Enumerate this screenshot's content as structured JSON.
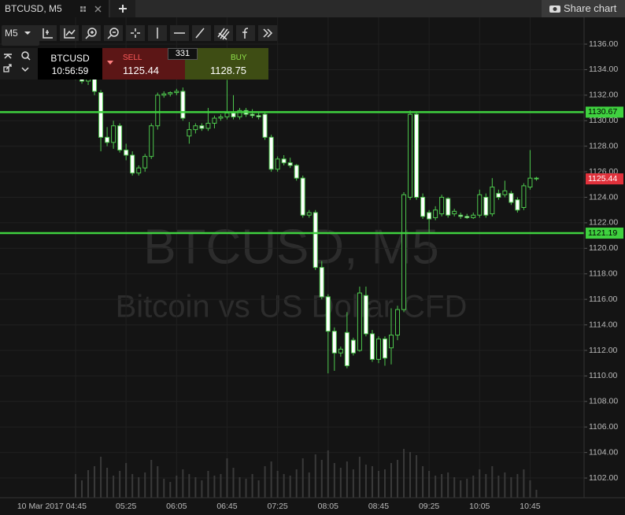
{
  "ui": {
    "tab_title": "BTCUSD, M5",
    "share": "Share chart",
    "timeframe": "M5",
    "symbol": "BTCUSD",
    "clock": "10:56:59",
    "sell_label": "SELL",
    "sell_price": "1125.44",
    "spread": "331",
    "buy_label": "BUY",
    "buy_price": "1128.75",
    "watermark_title": "BTCUSD, M5",
    "watermark_subtitle": "Bitcoin vs US Dollar CFD"
  },
  "chart_data": {
    "type": "candlestick",
    "categories": [
      "10 Mar 2017 04:45",
      null,
      null,
      null,
      null,
      null,
      null,
      null,
      "05:25",
      null,
      null,
      null,
      null,
      null,
      null,
      null,
      "06:05",
      null,
      null,
      null,
      null,
      null,
      null,
      null,
      "06:45",
      null,
      null,
      null,
      null,
      null,
      null,
      null,
      "07:25",
      null,
      null,
      null,
      null,
      null,
      null,
      null,
      "08:05",
      null,
      null,
      null,
      null,
      null,
      null,
      null,
      "08:45",
      null,
      null,
      null,
      null,
      null,
      null,
      null,
      "09:25",
      null,
      null,
      null,
      null,
      null,
      null,
      null,
      "10:05",
      null,
      null,
      null,
      null,
      null,
      null,
      null,
      "10:45",
      null
    ],
    "open": [
      1133.6,
      1133.4,
      1133.1,
      1133.6,
      1132.2,
      1128.7,
      1128.3,
      1129.6,
      1127.7,
      1127.3,
      1125.9,
      1126.3,
      1127.2,
      1129.6,
      1132.0,
      1132.1,
      1132.2,
      1132.3,
      1128.8,
      1129.3,
      1129.6,
      1129.4,
      1129.8,
      1130.2,
      1130.3,
      1130.6,
      1130.3,
      1130.8,
      1130.5,
      1130.4,
      1130.5,
      1128.7,
      1126.2,
      1127.0,
      1126.7,
      1126.5,
      1125.5,
      1122.6,
      1122.8,
      1118.5,
      1116.2,
      1113.5,
      1111.8,
      1113.4,
      1112.8,
      1112.0,
      1116.3,
      1113.3,
      1111.3,
      1112.9,
      1112.2,
      1113.2,
      1115.2,
      1124.0,
      1130.5,
      1124.0,
      1122.8,
      1122.4,
      1122.7,
      1123.9,
      1122.7,
      1122.6,
      1122.5,
      1122.4,
      1122.6,
      1124.0,
      1122.7,
      1124.3,
      1124.2,
      1124.3,
      1123.8,
      1123.2,
      1124.8,
      1125.5
    ],
    "high": [
      1134.0,
      1133.8,
      1133.9,
      1134.5,
      1132.4,
      1129.5,
      1130.0,
      1129.8,
      1128.2,
      1127.6,
      1126.5,
      1127.4,
      1129.8,
      1132.2,
      1132.3,
      1132.3,
      1132.5,
      1132.6,
      1129.9,
      1129.8,
      1129.8,
      1131.0,
      1130.4,
      1130.5,
      1133.2,
      1132.0,
      1131.0,
      1131.0,
      1130.9,
      1130.6,
      1130.7,
      1128.9,
      1127.2,
      1127.3,
      1127.1,
      1126.6,
      1125.7,
      1123.0,
      1123.0,
      1119.0,
      1116.4,
      1113.8,
      1112.3,
      1115.0,
      1113.0,
      1117.0,
      1117.0,
      1113.6,
      1113.1,
      1113.1,
      1115.3,
      1115.5,
      1124.4,
      1130.8,
      1130.7,
      1124.3,
      1123.0,
      1123.3,
      1124.2,
      1124.0,
      1123.1,
      1122.8,
      1122.7,
      1122.8,
      1124.6,
      1124.3,
      1125.5,
      1124.6,
      1125.3,
      1124.5,
      1124.0,
      1125.1,
      1127.7,
      1125.6
    ],
    "low": [
      1133.2,
      1132.9,
      1132.8,
      1132.0,
      1127.6,
      1128.0,
      1127.8,
      1127.5,
      1126.9,
      1125.7,
      1125.7,
      1126.0,
      1127.0,
      1129.3,
      1131.8,
      1131.9,
      1132.0,
      1130.0,
      1128.2,
      1129.0,
      1129.2,
      1129.2,
      1129.4,
      1130.0,
      1130.1,
      1130.1,
      1130.1,
      1130.3,
      1130.2,
      1130.1,
      1128.5,
      1126.0,
      1126.0,
      1126.5,
      1126.3,
      1125.3,
      1122.4,
      1122.4,
      1118.3,
      1116.0,
      1110.2,
      1110.4,
      1111.5,
      1110.6,
      1111.6,
      1111.9,
      1113.1,
      1111.1,
      1111.0,
      1110.8,
      1110.9,
      1112.8,
      1115.0,
      1123.8,
      1123.8,
      1122.3,
      1121.2,
      1122.2,
      1122.5,
      1122.4,
      1122.5,
      1122.3,
      1122.3,
      1122.3,
      1122.4,
      1122.4,
      1122.5,
      1123.8,
      1124.0,
      1123.4,
      1122.8,
      1123.0,
      1124.6,
      1125.3
    ],
    "close": [
      1133.4,
      1133.1,
      1133.6,
      1132.3,
      1128.7,
      1128.3,
      1129.6,
      1127.7,
      1127.3,
      1125.9,
      1126.3,
      1127.2,
      1129.6,
      1132.0,
      1132.1,
      1132.2,
      1132.3,
      1130.2,
      1129.3,
      1129.6,
      1129.4,
      1129.8,
      1130.2,
      1130.3,
      1130.6,
      1130.3,
      1130.8,
      1130.5,
      1130.4,
      1130.3,
      1128.7,
      1126.2,
      1127.0,
      1126.7,
      1126.5,
      1125.5,
      1122.6,
      1122.8,
      1118.5,
      1116.2,
      1113.5,
      1111.8,
      1112.1,
      1110.8,
      1111.8,
      1116.5,
      1113.3,
      1111.3,
      1112.9,
      1111.4,
      1113.2,
      1115.2,
      1124.2,
      1130.5,
      1124.0,
      1122.5,
      1122.3,
      1123.0,
      1124.0,
      1122.6,
      1122.9,
      1122.5,
      1122.4,
      1122.6,
      1124.2,
      1122.6,
      1124.8,
      1124.0,
      1124.5,
      1123.6,
      1123.0,
      1124.9,
      1125.5,
      1125.44
    ],
    "volume": [
      30,
      22,
      35,
      40,
      52,
      38,
      28,
      34,
      44,
      30,
      26,
      32,
      48,
      40,
      24,
      20,
      28,
      36,
      30,
      26,
      22,
      34,
      28,
      30,
      50,
      38,
      26,
      24,
      30,
      22,
      40,
      46,
      34,
      30,
      28,
      36,
      50,
      32,
      55,
      48,
      60,
      44,
      38,
      46,
      36,
      52,
      42,
      40,
      34,
      36,
      44,
      48,
      62,
      58,
      54,
      40,
      34,
      28,
      30,
      32,
      26,
      22,
      24,
      28,
      36,
      30,
      40,
      28,
      32,
      26,
      30,
      36,
      22,
      10
    ],
    "vlim": [
      0,
      100
    ],
    "ylim": [
      1100.46,
      1138.1
    ],
    "yticks": [
      {
        "value": 1102,
        "label": "1102.00"
      },
      {
        "value": 1104,
        "label": "1104.00"
      },
      {
        "value": 1106,
        "label": "1106.00"
      },
      {
        "value": 1108,
        "label": "1108.00"
      },
      {
        "value": 1110,
        "label": "1110.00"
      },
      {
        "value": 1112,
        "label": "1112.00"
      },
      {
        "value": 1114,
        "label": "1114.00"
      },
      {
        "value": 1116,
        "label": "1116.00"
      },
      {
        "value": 1118,
        "label": "1118.00"
      },
      {
        "value": 1120,
        "label": "1120.00"
      },
      {
        "value": 1122,
        "label": "1122.00"
      },
      {
        "value": 1124,
        "label": "1124.00"
      },
      {
        "value": 1126,
        "label": "1126.00"
      },
      {
        "value": 1128,
        "label": "1128.00"
      },
      {
        "value": 1130,
        "label": "1130.00"
      },
      {
        "value": 1132,
        "label": "1132.00"
      },
      {
        "value": 1134,
        "label": "1134.00"
      },
      {
        "value": 1136,
        "label": "1136.00"
      }
    ],
    "hlines": [
      1130.67,
      1121.19
    ],
    "last": 1125.44,
    "up_color": "#111111",
    "down_color": "#ffffff",
    "wick_color": "#4ec94e",
    "line_color": "#3fd13f",
    "last_color": "#e0313b",
    "grid": true
  }
}
